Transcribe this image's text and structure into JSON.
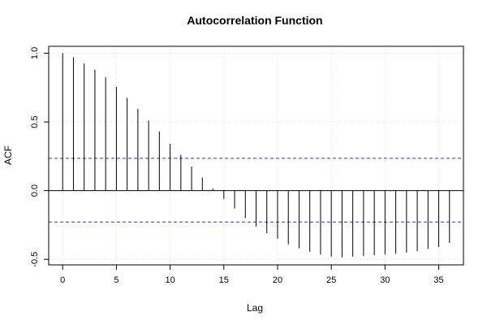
{
  "chart_data": {
    "type": "bar",
    "title": "Autocorrelation Function",
    "xlabel": "Lag",
    "ylabel": "ACF",
    "xlim": [
      -1.3,
      37.3
    ],
    "ylim": [
      -0.54,
      1.05
    ],
    "x_ticks": [
      0,
      5,
      10,
      15,
      20,
      25,
      30,
      35
    ],
    "y_ticks": [
      -0.5,
      0.0,
      0.5,
      1.0
    ],
    "x_tick_labels": [
      "0",
      "5",
      "10",
      "15",
      "20",
      "25",
      "30",
      "35"
    ],
    "y_tick_labels": [
      "-0.5",
      "0.0",
      "0.5",
      "1.0"
    ],
    "grid": true,
    "confidence_bounds": [
      0.235,
      -0.228
    ],
    "colors": {
      "bars": "#000000",
      "bounds": "#3333cc",
      "grid": "#d9d9d9",
      "zero_line": "#000000"
    },
    "x": [
      0,
      1,
      2,
      3,
      4,
      5,
      6,
      7,
      8,
      9,
      10,
      11,
      12,
      13,
      14,
      15,
      16,
      17,
      18,
      19,
      20,
      21,
      22,
      23,
      24,
      25,
      26,
      27,
      28,
      29,
      30,
      31,
      32,
      33,
      34,
      35,
      36
    ],
    "values": [
      1.0,
      0.97,
      0.925,
      0.88,
      0.825,
      0.755,
      0.675,
      0.595,
      0.51,
      0.43,
      0.34,
      0.26,
      0.175,
      0.095,
      0.015,
      -0.06,
      -0.13,
      -0.2,
      -0.26,
      -0.31,
      -0.35,
      -0.39,
      -0.42,
      -0.445,
      -0.465,
      -0.48,
      -0.485,
      -0.48,
      -0.475,
      -0.47,
      -0.465,
      -0.46,
      -0.45,
      -0.44,
      -0.425,
      -0.41,
      -0.38
    ]
  }
}
